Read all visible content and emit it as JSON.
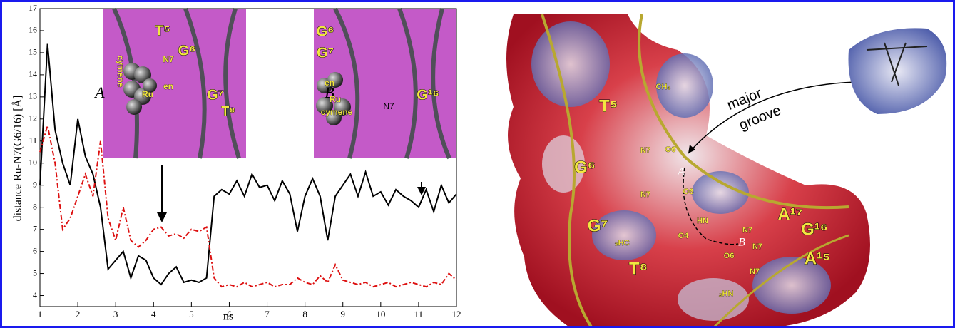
{
  "chart_data": {
    "type": "line",
    "y_label": "distance Ru-N7(G6/16) [Å]",
    "x_label": "ns",
    "xlim": [
      1,
      12
    ],
    "xticks": [
      1,
      2,
      3,
      4,
      5,
      6,
      7,
      8,
      9,
      10,
      11,
      12
    ],
    "ylim": [
      3.5,
      17
    ],
    "yticks": [
      4,
      5,
      6,
      7,
      8,
      9,
      10,
      11,
      12,
      13,
      14,
      15,
      16,
      17
    ],
    "x": [
      1.0,
      1.2,
      1.4,
      1.6,
      1.8,
      2.0,
      2.2,
      2.4,
      2.6,
      2.8,
      3.0,
      3.2,
      3.4,
      3.6,
      3.8,
      4.0,
      4.2,
      4.4,
      4.6,
      4.8,
      5.0,
      5.2,
      5.4,
      5.6,
      5.8,
      6.0,
      6.2,
      6.4,
      6.6,
      6.8,
      7.0,
      7.2,
      7.4,
      7.6,
      7.8,
      8.0,
      8.2,
      8.4,
      8.6,
      8.8,
      9.0,
      9.2,
      9.4,
      9.6,
      9.8,
      10.0,
      10.2,
      10.4,
      10.6,
      10.8,
      11.0,
      11.2,
      11.4,
      11.6,
      11.8,
      12.0
    ],
    "series": [
      {
        "color": "#000000",
        "linestyle": "solid",
        "values": [
          9.0,
          15.4,
          11.5,
          10.0,
          9.0,
          12.0,
          10.3,
          9.5,
          8.0,
          5.2,
          5.6,
          6.0,
          4.8,
          5.8,
          5.6,
          4.8,
          4.5,
          5.0,
          5.3,
          4.6,
          4.7,
          4.6,
          4.8,
          8.5,
          8.8,
          8.6,
          9.2,
          8.5,
          9.5,
          8.9,
          9.0,
          8.3,
          9.2,
          8.6,
          6.9,
          8.5,
          9.3,
          8.5,
          6.5,
          8.5,
          9.0,
          9.5,
          8.5,
          9.6,
          8.5,
          8.7,
          8.1,
          8.8,
          8.5,
          8.3,
          8.0,
          8.8,
          7.8,
          9.0,
          8.2,
          8.6
        ]
      },
      {
        "color": "#dd1111",
        "linestyle": "dashdot",
        "values": [
          10.5,
          11.7,
          10.0,
          7.0,
          7.5,
          8.5,
          9.5,
          8.5,
          11.0,
          7.5,
          6.5,
          8.0,
          6.5,
          6.2,
          6.5,
          7.0,
          7.1,
          6.7,
          6.8,
          6.6,
          7.0,
          6.9,
          7.1,
          4.8,
          4.4,
          4.5,
          4.4,
          4.6,
          4.4,
          4.5,
          4.6,
          4.4,
          4.5,
          4.5,
          4.8,
          4.6,
          4.5,
          4.9,
          4.6,
          5.4,
          4.7,
          4.6,
          4.5,
          4.6,
          4.4,
          4.5,
          4.6,
          4.4,
          4.5,
          4.6,
          4.5,
          4.4,
          4.6,
          4.5,
          5.0,
          4.7
        ]
      }
    ],
    "insets": [
      {
        "labels": [
          "A",
          "T⁵",
          "N7",
          "G⁶",
          "G⁷",
          "T⁸",
          "en",
          "Ru",
          "cymene"
        ]
      },
      {
        "labels": [
          "B",
          "G⁶",
          "G⁷",
          "en",
          "Ru",
          "cymene",
          "N7",
          "G¹⁶"
        ]
      }
    ]
  },
  "structure": {
    "labels": [
      "T⁵",
      "CH₃",
      "major",
      "groove",
      "G⁶",
      "N7",
      "O6",
      "A",
      "N7",
      "O6",
      "G⁷",
      "HN",
      "N7",
      "A¹⁷",
      "G¹⁶",
      "O4",
      "B",
      "₃HC",
      "N7",
      "O6",
      "T⁸",
      "N7",
      "A¹⁵",
      "₂HN"
    ]
  }
}
